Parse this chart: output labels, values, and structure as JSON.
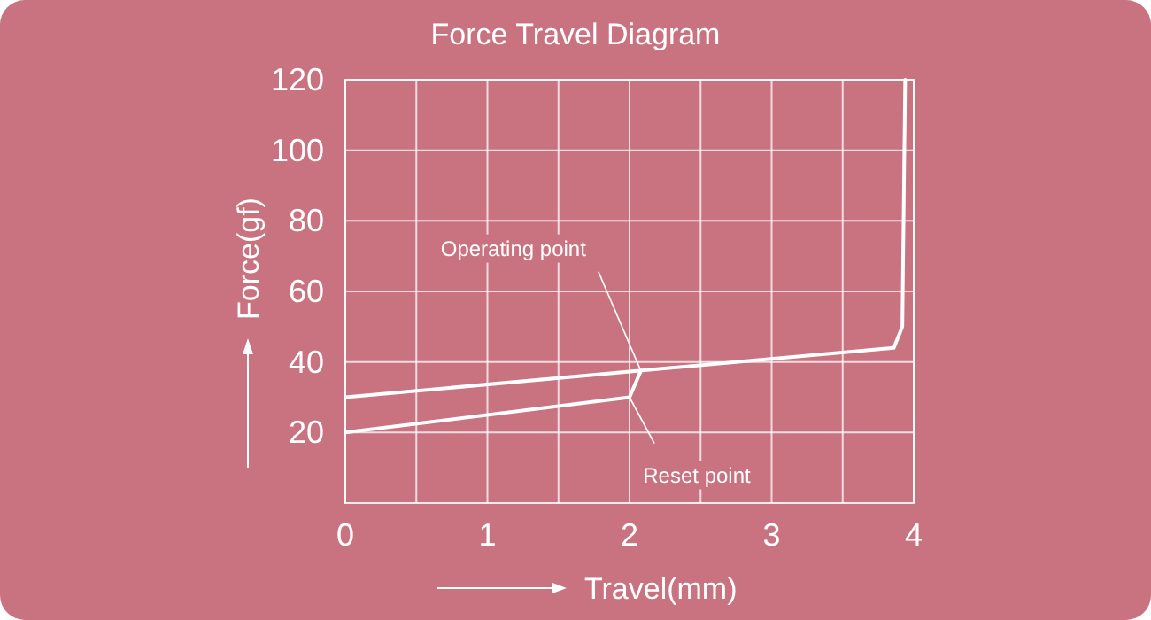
{
  "chart_data": {
    "type": "line",
    "title": "Force Travel Diagram",
    "xlabel": "Travel(mm)",
    "ylabel": "Force(gf)",
    "xlim": [
      0,
      4
    ],
    "ylim": [
      0,
      120
    ],
    "xticks": [
      0,
      {
        "value": 0.5,
        "label": null
      },
      1,
      {
        "value": 1.5,
        "label": null
      },
      2,
      {
        "value": 2.5,
        "label": null
      },
      3,
      {
        "value": 3.5,
        "label": null
      },
      4
    ],
    "yticks": [
      20,
      40,
      60,
      80,
      100,
      120
    ],
    "grid": true,
    "marker": "none",
    "line_style": "solid",
    "series": [
      {
        "color": "#ffffff",
        "x": [
          0,
          3.86,
          3.92,
          3.94
        ],
        "values": [
          30,
          44,
          50,
          120
        ]
      },
      {
        "color": "#ffffff",
        "x": [
          0,
          2,
          2.08
        ],
        "values": [
          20,
          30,
          37.5
        ]
      }
    ],
    "annotations": [
      {
        "text": "Operating point",
        "x": 2.08,
        "y": 37.5
      },
      {
        "text": "Reset point",
        "x": 2,
        "y": 30
      }
    ]
  }
}
